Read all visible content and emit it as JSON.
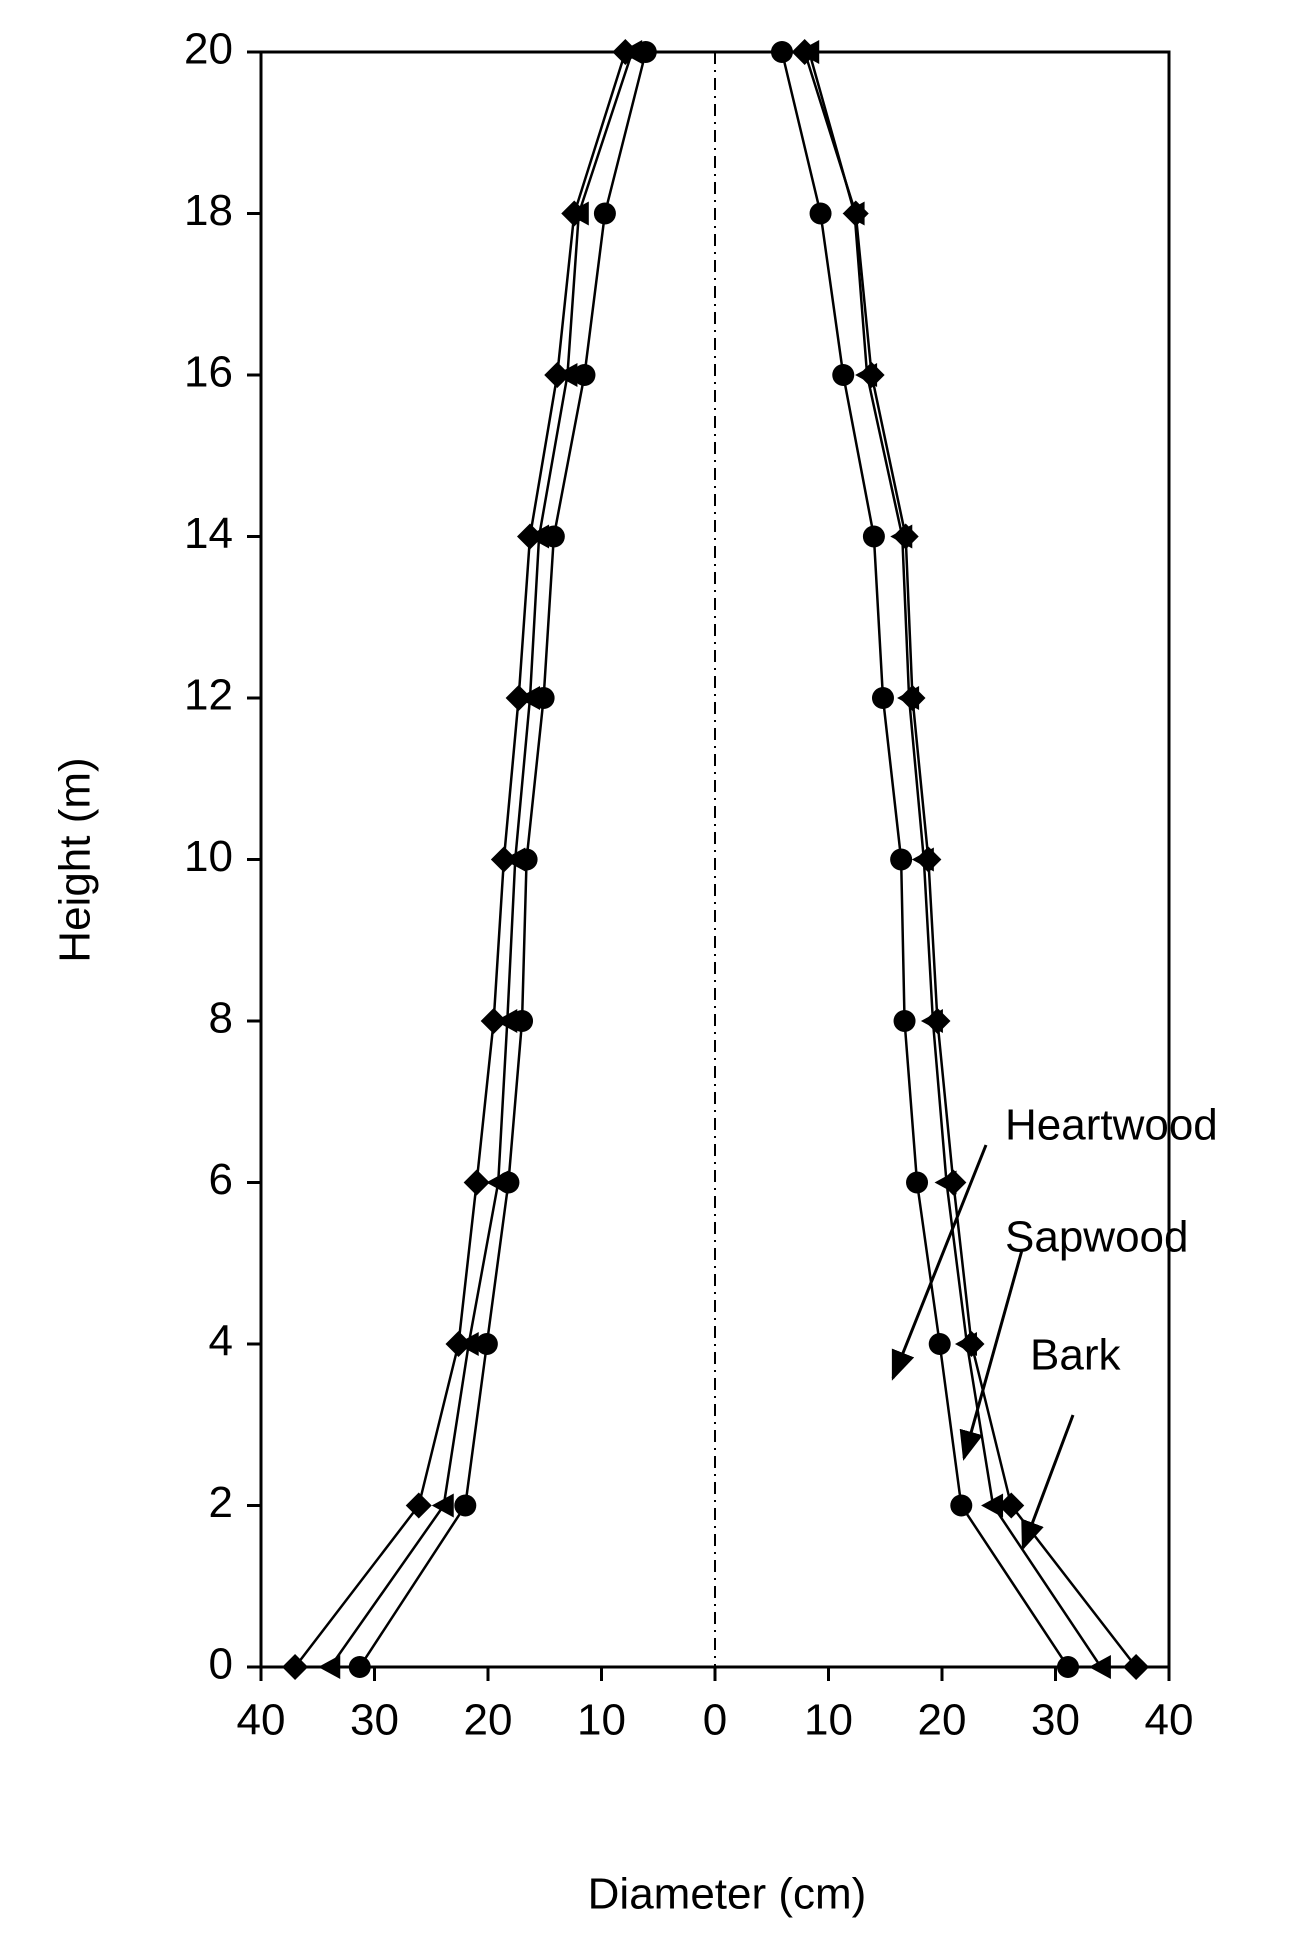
{
  "chart_data": {
    "type": "line",
    "xlabel": "Diameter (cm)",
    "ylabel": "Height (m)",
    "heights": [
      0,
      2,
      4,
      6,
      8,
      10,
      12,
      14,
      16,
      18,
      20
    ],
    "series": [
      {
        "name": "Heartwood",
        "marker": "circle",
        "color": "#000000",
        "left": [
          -31.3,
          -22,
          -20.1,
          -18.2,
          -17,
          -16.6,
          -15.1,
          -14.2,
          -11.5,
          -9.7,
          -6.1
        ],
        "right": [
          31.1,
          21.7,
          19.8,
          17.8,
          16.7,
          16.4,
          14.8,
          14,
          11.3,
          9.3,
          5.9
        ]
      },
      {
        "name": "Sapwood",
        "marker": "triangle-left",
        "color": "#000000",
        "left": [
          -33.9,
          -23.9,
          -21.7,
          -19.1,
          -18.3,
          -17.6,
          -16.3,
          -15.5,
          -13,
          -12,
          -7.3
        ],
        "right": [
          34,
          24.5,
          22.2,
          20.4,
          19.2,
          18.4,
          17.1,
          16.5,
          13.4,
          12.3,
          8.3
        ]
      },
      {
        "name": "Bark",
        "marker": "diamond",
        "color": "#000000",
        "left": [
          -37,
          -26.1,
          -22.6,
          -21,
          -19.5,
          -18.6,
          -17.3,
          -16.3,
          -13.9,
          -12.4,
          -7.9
        ],
        "right": [
          37.1,
          26.1,
          22.6,
          21,
          19.6,
          18.8,
          17.4,
          16.8,
          13.8,
          12.4,
          7.9
        ]
      }
    ],
    "xlim": [
      -40,
      40
    ],
    "xticks": [
      {
        "value": -40,
        "label": "40"
      },
      {
        "value": -30,
        "label": "30"
      },
      {
        "value": -20,
        "label": "20"
      },
      {
        "value": -10,
        "label": "10"
      },
      0,
      10,
      20,
      30,
      40
    ],
    "ylim": [
      0,
      20
    ],
    "yticks": [
      0,
      2,
      4,
      6,
      8,
      10,
      12,
      14,
      16,
      18,
      20
    ],
    "grid": false
  }
}
